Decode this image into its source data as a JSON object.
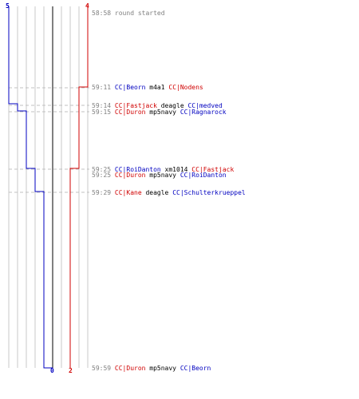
{
  "colors": {
    "blue_team": "#0000c0",
    "red_team": "#d00000",
    "grid": "#c8c8c8",
    "center": "#808080",
    "dashed": "#c0c0c0",
    "time": "#808080"
  },
  "counts": {
    "blue_start": "5",
    "red_start": "4",
    "blue_end": "0",
    "red_end": "2"
  },
  "events": [
    {
      "time": "58:58",
      "text": "round started",
      "type": "system"
    },
    {
      "time": "59:11",
      "killer": "CC|Beorn",
      "killer_team": "blue",
      "weapon": "m4a1",
      "victim": "CC|Nodens",
      "victim_team": "red"
    },
    {
      "time": "59:14",
      "killer": "CC|Fastjack",
      "killer_team": "red",
      "weapon": "deagle",
      "victim": "CC|medved",
      "victim_team": "blue"
    },
    {
      "time": "59:15",
      "killer": "CC|Duron",
      "killer_team": "red",
      "weapon": "mp5navy",
      "victim": "CC|Ragnarock",
      "victim_team": "blue"
    },
    {
      "time": "59:25",
      "killer": "CC|RoiDanton",
      "killer_team": "blue",
      "weapon": "xm1014",
      "victim": "CC|Fastjack",
      "victim_team": "red"
    },
    {
      "time": "59:25",
      "killer": "CC|Duron",
      "killer_team": "red",
      "weapon": "mp5navy",
      "victim": "CC|RoiDanton",
      "victim_team": "blue"
    },
    {
      "time": "59:29",
      "killer": "CC|Kane",
      "killer_team": "red",
      "weapon": "deagle",
      "victim": "CC|Schulterkrueppel",
      "victim_team": "blue"
    },
    {
      "time": "59:59",
      "killer": "CC|Duron",
      "killer_team": "red",
      "weapon": "mp5navy",
      "victim": "CC|Beorn",
      "victim_team": "blue"
    }
  ]
}
